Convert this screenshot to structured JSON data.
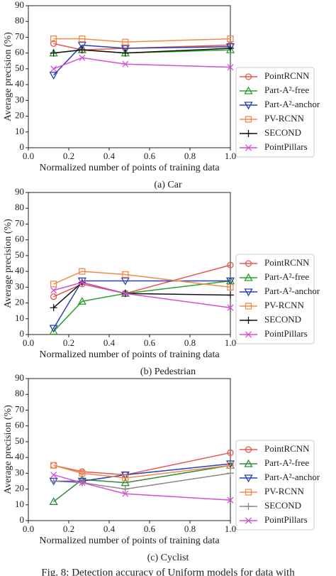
{
  "chart_data": [
    {
      "type": "line",
      "caption": "(a) Car",
      "x_label": "Normalized number of points of training data",
      "y_label": "Average precision (%)",
      "x": [
        0.125,
        0.266,
        0.48,
        1.0
      ],
      "xlim": [
        0,
        1.0
      ],
      "ylim": [
        0,
        90
      ],
      "xticks": [
        {
          "value": 0,
          "label": "0.0"
        },
        0.2,
        0.4,
        0.6,
        0.8,
        {
          "value": 1.0,
          "label": "1.0"
        }
      ],
      "yticks": [
        0,
        10,
        20,
        30,
        40,
        50,
        60,
        70,
        80,
        90
      ],
      "legend": "right",
      "series": [
        {
          "name": "PointRCNN",
          "color": "#e8554e",
          "marker": "circle",
          "values": [
            66,
            62,
            63,
            65
          ]
        },
        {
          "name": "Part-A²-free",
          "color": "#2ca02c",
          "marker": "triangle-up",
          "values": [
            60,
            62,
            60,
            62
          ]
        },
        {
          "name": "Part-A²-anchor",
          "color": "#2b3fb5",
          "marker": "triangle-down",
          "values": [
            46,
            65,
            63,
            64
          ]
        },
        {
          "name": "PV-RCNN",
          "color": "#f08a4b",
          "marker": "square",
          "values": [
            69,
            69,
            67,
            69
          ]
        },
        {
          "name": "SECOND",
          "color": "#111111",
          "marker": "plus",
          "values": [
            60,
            62,
            60,
            63
          ]
        },
        {
          "name": "PointPillars",
          "color": "#d44fd4",
          "marker": "x",
          "values": [
            50,
            57,
            53,
            51
          ]
        }
      ]
    },
    {
      "type": "line",
      "caption": "(b) Pedestrian",
      "x_label": "Normalized number of points of training data",
      "y_label": "Average precision (%)",
      "x": [
        0.125,
        0.266,
        0.48,
        1.0
      ],
      "xlim": [
        0,
        1.0
      ],
      "ylim": [
        0,
        90
      ],
      "xticks": [
        {
          "value": 0,
          "label": "0.0"
        },
        0.2,
        0.4,
        0.6,
        0.8,
        {
          "value": 1.0,
          "label": "1.0"
        }
      ],
      "yticks": [
        0,
        10,
        20,
        30,
        40,
        50,
        60,
        70,
        80,
        90
      ],
      "legend": "right",
      "series": [
        {
          "name": "PointRCNN",
          "color": "#e8554e",
          "marker": "circle",
          "values": [
            24,
            32,
            26,
            44
          ]
        },
        {
          "name": "Part-A²-free",
          "color": "#2ca02c",
          "marker": "triangle-up",
          "values": [
            2,
            21,
            26,
            34
          ]
        },
        {
          "name": "Part-A²-anchor",
          "color": "#2b3fb5",
          "marker": "triangle-down",
          "values": [
            4,
            34,
            34,
            34
          ]
        },
        {
          "name": "PV-RCNN",
          "color": "#f08a4b",
          "marker": "square",
          "values": [
            32,
            40,
            38,
            30
          ]
        },
        {
          "name": "SECOND",
          "color": "#111111",
          "marker": "plus",
          "values": [
            17,
            33,
            26,
            25
          ]
        },
        {
          "name": "PointPillars",
          "color": "#d44fd4",
          "marker": "x",
          "values": [
            28,
            33,
            26,
            17
          ]
        }
      ]
    },
    {
      "type": "line",
      "caption": "(c) Cyclist",
      "x_label": "Normalized number of points of training data",
      "y_label": "Average precision (%)",
      "x": [
        0.125,
        0.266,
        0.48,
        1.0
      ],
      "xlim": [
        0,
        1.0
      ],
      "ylim": [
        0,
        90
      ],
      "xticks": [
        {
          "value": 0,
          "label": "0.0"
        },
        0.2,
        0.4,
        0.6,
        0.8,
        {
          "value": 1.0,
          "label": "1.0"
        }
      ],
      "yticks": [
        0,
        10,
        20,
        30,
        40,
        50,
        60,
        70,
        80,
        90
      ],
      "legend": "right",
      "series": [
        {
          "name": "PointRCNN",
          "color": "#e8554e",
          "marker": "circle",
          "values": [
            35,
            31,
            29,
            43
          ]
        },
        {
          "name": "Part-A²-free",
          "color": "#2e8b3a",
          "marker": "triangle-up",
          "values": [
            12,
            26,
            24,
            35
          ]
        },
        {
          "name": "Part-A²-anchor",
          "color": "#2b3fb5",
          "marker": "triangle-down",
          "values": [
            25,
            25,
            29,
            36
          ]
        },
        {
          "name": "PV-RCNN",
          "color": "#f08a4b",
          "marker": "square",
          "values": [
            35,
            30,
            27,
            35
          ]
        },
        {
          "name": "SECOND",
          "color": "#888888",
          "marker": "plus",
          "values": [
            25,
            24,
            20,
            30
          ]
        },
        {
          "name": "PointPillars",
          "color": "#d44fd4",
          "marker": "x",
          "values": [
            29,
            24,
            17,
            13
          ]
        }
      ]
    }
  ],
  "figure_caption": "Fig. 8: Detection accuracy of Uniform models for data with"
}
